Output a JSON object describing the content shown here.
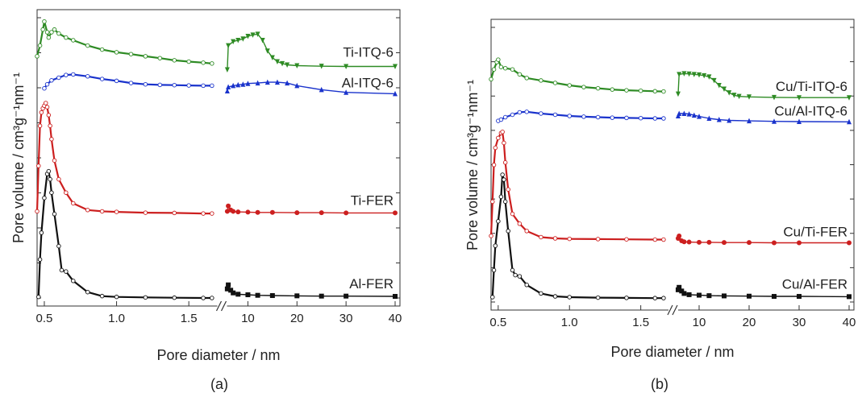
{
  "chart_data": [
    {
      "panel": "(a)",
      "type": "line",
      "xlabel": "Pore diameter / nm",
      "ylabel": "Pore volume / cm³g⁻¹nm⁻¹",
      "x_ticks_left": [
        "0.5",
        "1.0",
        "1.5"
      ],
      "x_ticks_right": [
        "10",
        "20",
        "30",
        "40"
      ],
      "xlim_left": [
        0.45,
        1.7
      ],
      "xlim_right": [
        5,
        40
      ],
      "ylim": [
        0,
        100
      ],
      "grid": false,
      "axis_break": true,
      "series": [
        {
          "name": "Ti-ITQ-6",
          "color": "#2e8b24",
          "left": [
            [
              0.45,
              91
            ],
            [
              0.47,
              95
            ],
            [
              0.49,
              101
            ],
            [
              0.5,
              104
            ],
            [
              0.52,
              100
            ],
            [
              0.53,
              98
            ],
            [
              0.55,
              100
            ],
            [
              0.57,
              101
            ],
            [
              0.6,
              99.5
            ],
            [
              0.65,
              98
            ],
            [
              0.7,
              97
            ],
            [
              0.8,
              95
            ],
            [
              0.9,
              93.5
            ],
            [
              1.0,
              92.5
            ],
            [
              1.1,
              91.8
            ],
            [
              1.2,
              91
            ],
            [
              1.3,
              90.3
            ],
            [
              1.4,
              89.5
            ],
            [
              1.5,
              89
            ],
            [
              1.6,
              88.6
            ],
            [
              1.66,
              88.3
            ]
          ],
          "right": [
            [
              5.8,
              86
            ],
            [
              6,
              95
            ],
            [
              7,
              96.5
            ],
            [
              8,
              97
            ],
            [
              9,
              97.5
            ],
            [
              10,
              98.5
            ],
            [
              11,
              99
            ],
            [
              12,
              99.3
            ],
            [
              13,
              97
            ],
            [
              14,
              93
            ],
            [
              15,
              90.5
            ],
            [
              16,
              89
            ],
            [
              17,
              88.3
            ],
            [
              18,
              87.8
            ],
            [
              20,
              87.5
            ],
            [
              25,
              87.3
            ],
            [
              30,
              87.2
            ],
            [
              40,
              87.2
            ]
          ]
        },
        {
          "name": "Al-ITQ-6",
          "color": "#1a33cc",
          "left": [
            [
              0.5,
              79
            ],
            [
              0.52,
              80.5
            ],
            [
              0.55,
              82
            ],
            [
              0.6,
              83
            ],
            [
              0.65,
              84
            ],
            [
              0.7,
              84.2
            ],
            [
              0.8,
              83.5
            ],
            [
              0.9,
              82.5
            ],
            [
              1.0,
              81.8
            ],
            [
              1.1,
              81
            ],
            [
              1.2,
              80.5
            ],
            [
              1.3,
              80.3
            ],
            [
              1.4,
              80.2
            ],
            [
              1.5,
              80.1
            ],
            [
              1.6,
              80
            ],
            [
              1.66,
              80
            ]
          ],
          "right": [
            [
              5.8,
              78
            ],
            [
              6,
              79.5
            ],
            [
              7,
              80
            ],
            [
              8,
              80.3
            ],
            [
              9,
              80.5
            ],
            [
              10,
              80.8
            ],
            [
              12,
              81
            ],
            [
              14,
              81.3
            ],
            [
              16,
              81.3
            ],
            [
              18,
              81
            ],
            [
              20,
              80
            ],
            [
              25,
              78.5
            ],
            [
              30,
              77.5
            ],
            [
              40,
              77
            ]
          ]
        },
        {
          "name": "Ti-FER",
          "color": "#cc1f1f",
          "left": [
            [
              0.45,
              33
            ],
            [
              0.46,
              50
            ],
            [
              0.47,
              65
            ],
            [
              0.48,
              70
            ],
            [
              0.49,
              71.5
            ],
            [
              0.5,
              72.5
            ],
            [
              0.51,
              73.5
            ],
            [
              0.52,
              72
            ],
            [
              0.53,
              69
            ],
            [
              0.54,
              65
            ],
            [
              0.55,
              60
            ],
            [
              0.57,
              52
            ],
            [
              0.6,
              45
            ],
            [
              0.65,
              40
            ],
            [
              0.7,
              36
            ],
            [
              0.8,
              33.5
            ],
            [
              0.9,
              33
            ],
            [
              1.0,
              32.8
            ],
            [
              1.2,
              32.5
            ],
            [
              1.4,
              32.4
            ],
            [
              1.6,
              32.2
            ],
            [
              1.66,
              32.2
            ]
          ],
          "right": [
            [
              5.8,
              33
            ],
            [
              6,
              35
            ],
            [
              6.5,
              33.5
            ],
            [
              7,
              33
            ],
            [
              8,
              32.8
            ],
            [
              10,
              32.7
            ],
            [
              12,
              32.6
            ],
            [
              15,
              32.6
            ],
            [
              20,
              32.5
            ],
            [
              25,
              32.5
            ],
            [
              30,
              32.4
            ],
            [
              40,
              32.4
            ]
          ]
        },
        {
          "name": "Al-FER",
          "color": "#111111",
          "left": [
            [
              0.46,
              1
            ],
            [
              0.47,
              15
            ],
            [
              0.48,
              25
            ],
            [
              0.5,
              38
            ],
            [
              0.52,
              47
            ],
            [
              0.53,
              48
            ],
            [
              0.54,
              45
            ],
            [
              0.55,
              40
            ],
            [
              0.57,
              32
            ],
            [
              0.6,
              20
            ],
            [
              0.62,
              11
            ],
            [
              0.65,
              10.5
            ],
            [
              0.7,
              7
            ],
            [
              0.8,
              2.8
            ],
            [
              0.9,
              1.3
            ],
            [
              1.0,
              1
            ],
            [
              1.2,
              0.8
            ],
            [
              1.4,
              0.7
            ],
            [
              1.6,
              0.6
            ],
            [
              1.66,
              0.6
            ]
          ],
          "right": [
            [
              5.8,
              4
            ],
            [
              6,
              5.5
            ],
            [
              6.5,
              3.5
            ],
            [
              7,
              2.5
            ],
            [
              8,
              2
            ],
            [
              10,
              1.8
            ],
            [
              12,
              1.6
            ],
            [
              15,
              1.5
            ],
            [
              20,
              1.4
            ],
            [
              25,
              1.3
            ],
            [
              30,
              1.3
            ],
            [
              40,
              1.2
            ]
          ]
        }
      ]
    },
    {
      "panel": "(b)",
      "type": "line",
      "xlabel": "Pore diameter / nm",
      "ylabel": "Pore volume / cm³g⁻¹nm⁻¹",
      "x_ticks_left": [
        "0.5",
        "1.0",
        "1.5"
      ],
      "x_ticks_right": [
        "10",
        "20",
        "30",
        "40"
      ],
      "xlim_left": [
        0.45,
        1.7
      ],
      "xlim_right": [
        5,
        40
      ],
      "ylim": [
        0,
        100
      ],
      "grid": false,
      "axis_break": true,
      "series": [
        {
          "name": "Cu/Ti-ITQ-6",
          "color": "#2e8b24",
          "left": [
            [
              0.45,
              90
            ],
            [
              0.47,
              94
            ],
            [
              0.49,
              97
            ],
            [
              0.5,
              98
            ],
            [
              0.52,
              95
            ],
            [
              0.55,
              94.5
            ],
            [
              0.6,
              94
            ],
            [
              0.65,
              92
            ],
            [
              0.7,
              90.5
            ],
            [
              0.8,
              89.5
            ],
            [
              0.9,
              88.5
            ],
            [
              1.0,
              87.5
            ],
            [
              1.1,
              86.8
            ],
            [
              1.2,
              86.3
            ],
            [
              1.3,
              85.8
            ],
            [
              1.4,
              85.5
            ],
            [
              1.5,
              85.3
            ],
            [
              1.6,
              85.1
            ],
            [
              1.66,
              85
            ]
          ],
          "right": [
            [
              5.8,
              84
            ],
            [
              6,
              92
            ],
            [
              7,
              92.3
            ],
            [
              8,
              92.2
            ],
            [
              9,
              92
            ],
            [
              10,
              91.8
            ],
            [
              11,
              91.5
            ],
            [
              12,
              91
            ],
            [
              13,
              89.5
            ],
            [
              14,
              87.5
            ],
            [
              15,
              86
            ],
            [
              16,
              84.5
            ],
            [
              17,
              83.5
            ],
            [
              18,
              83
            ],
            [
              20,
              82.8
            ],
            [
              25,
              82.6
            ],
            [
              30,
              82.5
            ],
            [
              40,
              82.5
            ]
          ]
        },
        {
          "name": "Cu/Al-ITQ-6",
          "color": "#1a33cc",
          "left": [
            [
              0.5,
              73
            ],
            [
              0.52,
              73.5
            ],
            [
              0.55,
              74.5
            ],
            [
              0.6,
              75.5
            ],
            [
              0.65,
              76.5
            ],
            [
              0.7,
              76.7
            ],
            [
              0.8,
              76
            ],
            [
              0.9,
              75.5
            ],
            [
              1.0,
              75
            ],
            [
              1.1,
              74.7
            ],
            [
              1.2,
              74.5
            ],
            [
              1.3,
              74.3
            ],
            [
              1.4,
              74.2
            ],
            [
              1.5,
              74.1
            ],
            [
              1.6,
              74
            ],
            [
              1.66,
              74
            ]
          ],
          "right": [
            [
              5.8,
              75
            ],
            [
              6,
              76
            ],
            [
              7,
              76
            ],
            [
              8,
              75.8
            ],
            [
              9,
              75.3
            ],
            [
              10,
              74.8
            ],
            [
              12,
              74
            ],
            [
              14,
              73.5
            ],
            [
              16,
              73.2
            ],
            [
              20,
              73
            ],
            [
              25,
              72.8
            ],
            [
              30,
              72.7
            ],
            [
              40,
              72.6
            ]
          ]
        },
        {
          "name": "Cu/Ti-FER",
          "color": "#cc1f1f",
          "left": [
            [
              0.45,
              26
            ],
            [
              0.46,
              40
            ],
            [
              0.47,
              55
            ],
            [
              0.48,
              62
            ],
            [
              0.5,
              66
            ],
            [
              0.52,
              68
            ],
            [
              0.53,
              68.5
            ],
            [
              0.54,
              64
            ],
            [
              0.55,
              56
            ],
            [
              0.57,
              45
            ],
            [
              0.6,
              35
            ],
            [
              0.65,
              31
            ],
            [
              0.7,
              28
            ],
            [
              0.8,
              25.5
            ],
            [
              0.9,
              25
            ],
            [
              1.0,
              24.8
            ],
            [
              1.2,
              24.7
            ],
            [
              1.4,
              24.6
            ],
            [
              1.6,
              24.5
            ],
            [
              1.66,
              24.5
            ]
          ],
          "right": [
            [
              5.8,
              25
            ],
            [
              6,
              26
            ],
            [
              6.5,
              24
            ],
            [
              7,
              23.6
            ],
            [
              8,
              23.5
            ],
            [
              10,
              23.4
            ],
            [
              12,
              23.4
            ],
            [
              15,
              23.3
            ],
            [
              20,
              23.3
            ],
            [
              25,
              23.2
            ],
            [
              30,
              23.2
            ],
            [
              40,
              23.2
            ]
          ]
        },
        {
          "name": "Cu/Al-FER",
          "color": "#111111",
          "left": [
            [
              0.46,
              1
            ],
            [
              0.47,
              12
            ],
            [
              0.48,
              22
            ],
            [
              0.5,
              32
            ],
            [
              0.52,
              42
            ],
            [
              0.53,
              51
            ],
            [
              0.54,
              49
            ],
            [
              0.55,
              40
            ],
            [
              0.57,
              28
            ],
            [
              0.6,
              12
            ],
            [
              0.62,
              10
            ],
            [
              0.65,
              9.5
            ],
            [
              0.7,
              6
            ],
            [
              0.8,
              2.5
            ],
            [
              0.9,
              1.3
            ],
            [
              1.0,
              1
            ],
            [
              1.2,
              0.8
            ],
            [
              1.4,
              0.7
            ],
            [
              1.6,
              0.6
            ],
            [
              1.66,
              0.6
            ]
          ],
          "right": [
            [
              5.8,
              4
            ],
            [
              6,
              5
            ],
            [
              6.5,
              3.5
            ],
            [
              7,
              2.5
            ],
            [
              8,
              2
            ],
            [
              10,
              1.8
            ],
            [
              12,
              1.6
            ],
            [
              15,
              1.5
            ],
            [
              20,
              1.4
            ],
            [
              25,
              1.3
            ],
            [
              30,
              1.3
            ],
            [
              40,
              1.2
            ]
          ]
        }
      ]
    }
  ]
}
